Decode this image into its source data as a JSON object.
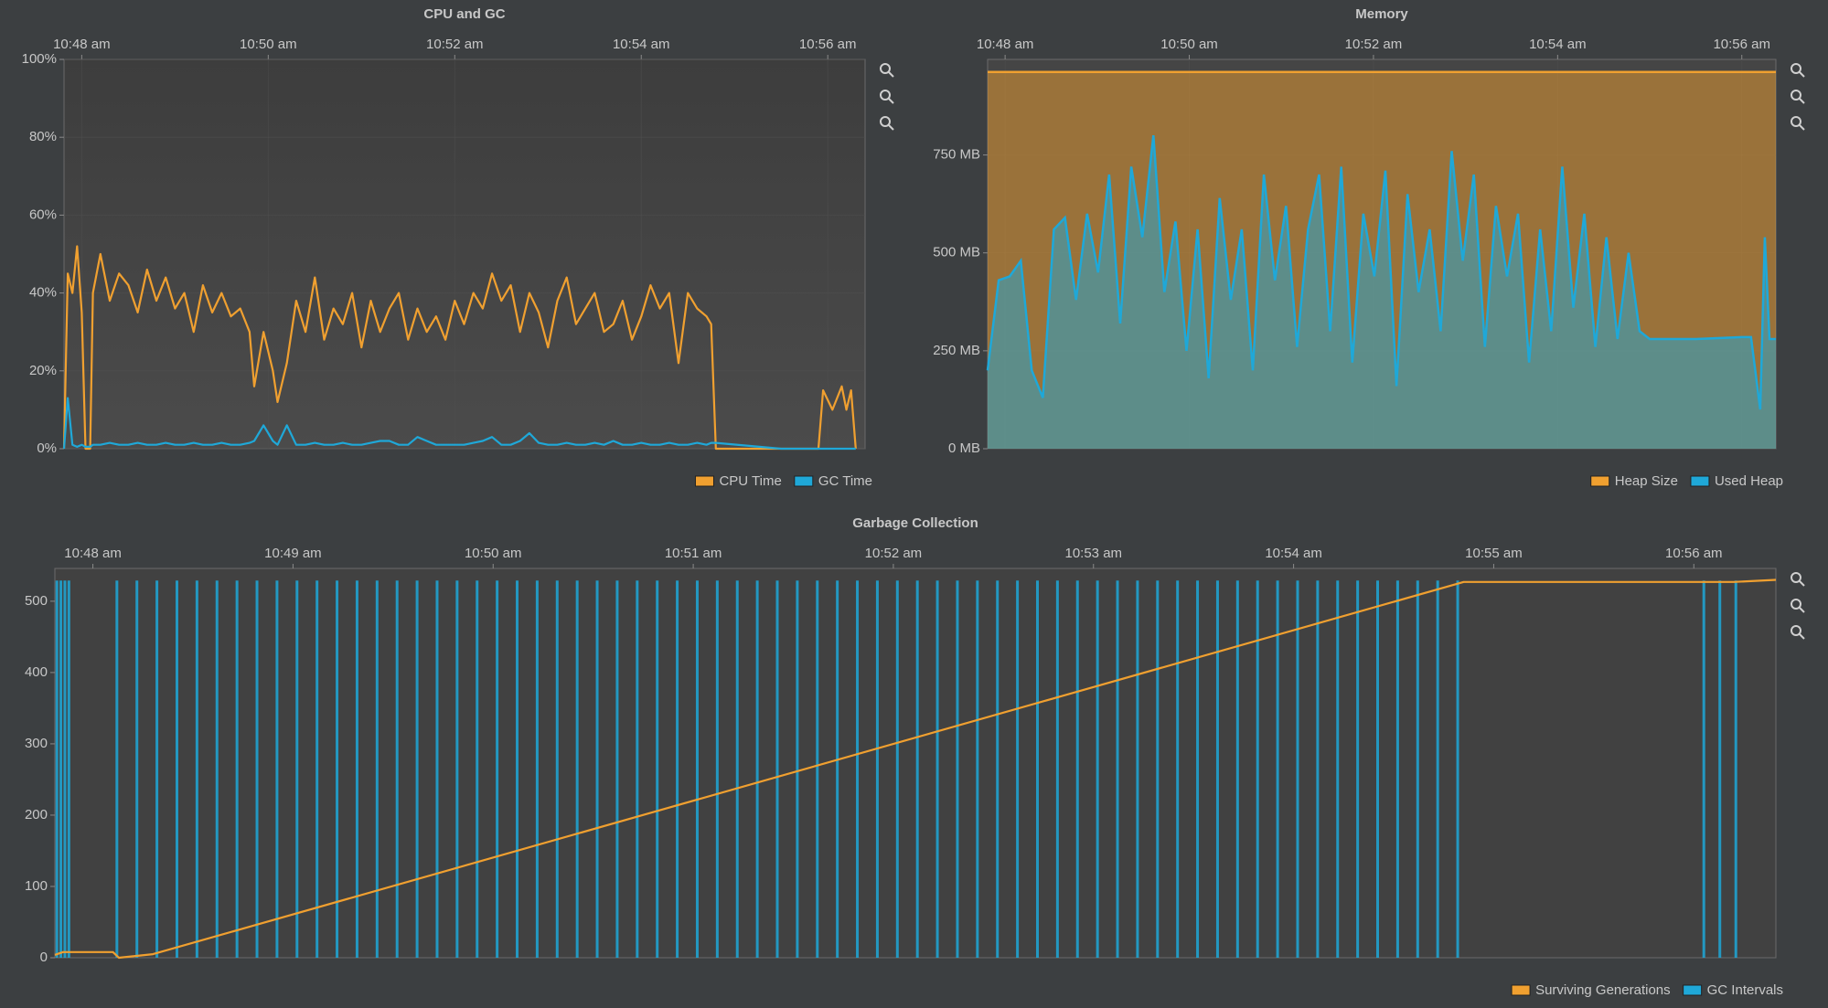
{
  "chart_data": [
    {
      "type": "line",
      "title": "CPU and GC",
      "x": [
        47.81,
        47.85,
        47.9,
        47.95,
        48.0,
        48.04,
        48.09,
        48.12,
        48.2,
        48.3,
        48.4,
        48.5,
        48.6,
        48.7,
        48.8,
        48.9,
        49.0,
        49.1,
        49.2,
        49.3,
        49.4,
        49.5,
        49.6,
        49.7,
        49.8,
        49.85,
        49.95,
        50.05,
        50.1,
        50.2,
        50.3,
        50.4,
        50.5,
        50.6,
        50.7,
        50.8,
        50.9,
        51.0,
        51.1,
        51.2,
        51.3,
        51.4,
        51.5,
        51.6,
        51.7,
        51.8,
        51.9,
        52.0,
        52.1,
        52.2,
        52.3,
        52.4,
        52.5,
        52.6,
        52.7,
        52.8,
        52.9,
        53.0,
        53.1,
        53.2,
        53.3,
        53.4,
        53.5,
        53.6,
        53.7,
        53.8,
        53.9,
        54.0,
        54.1,
        54.2,
        54.3,
        54.4,
        54.5,
        54.6,
        54.7,
        54.75,
        54.8,
        55.5,
        55.9,
        55.95,
        56.05,
        56.15,
        56.2,
        56.25,
        56.3
      ],
      "series": [
        {
          "name": "CPU Time",
          "color": "#f0a030",
          "values": [
            0,
            45,
            40,
            52,
            35,
            0,
            0,
            40,
            50,
            38,
            45,
            42,
            35,
            46,
            38,
            44,
            36,
            40,
            30,
            42,
            35,
            40,
            34,
            36,
            30,
            16,
            30,
            20,
            12,
            22,
            38,
            30,
            44,
            28,
            36,
            32,
            40,
            26,
            38,
            30,
            36,
            40,
            28,
            36,
            30,
            34,
            28,
            38,
            32,
            40,
            36,
            45,
            38,
            42,
            30,
            40,
            35,
            26,
            38,
            44,
            32,
            36,
            40,
            30,
            32,
            38,
            28,
            34,
            42,
            36,
            40,
            22,
            40,
            36,
            34,
            32,
            0,
            0,
            0,
            15,
            10,
            16,
            10,
            15,
            0
          ]
        },
        {
          "name": "GC Time",
          "color": "#1fa8d8",
          "values": [
            0,
            13,
            1,
            0.5,
            1,
            0.5,
            0.5,
            1,
            1,
            1.5,
            1,
            1,
            1.5,
            1,
            1,
            1.5,
            1,
            1,
            1.5,
            1,
            1,
            1.5,
            1,
            1,
            1.5,
            2,
            6,
            2,
            1,
            6,
            1,
            1,
            1.5,
            1,
            1,
            1.5,
            1,
            1,
            1.5,
            2,
            2,
            1,
            1,
            3,
            2,
            1,
            1,
            1,
            1,
            1.5,
            2,
            3,
            1,
            1,
            2,
            4,
            1.5,
            1,
            1,
            1.5,
            1,
            1,
            1.5,
            1,
            2,
            1,
            1,
            1.5,
            1,
            1,
            1.5,
            1,
            1,
            1.5,
            1,
            1.5,
            1.5,
            0,
            0,
            0,
            0,
            0,
            0,
            0,
            0
          ]
        }
      ],
      "xlim": [
        47.81,
        56.4
      ],
      "xticks": [
        {
          "value": 48,
          "label": "10:48 am"
        },
        {
          "value": 50,
          "label": "10:50 am"
        },
        {
          "value": 52,
          "label": "10:52 am"
        },
        {
          "value": 54,
          "label": "10:54 am"
        },
        {
          "value": 56,
          "label": "10:56 am"
        }
      ],
      "ylim": [
        0,
        100
      ],
      "yticks": [
        {
          "value": 0,
          "label": "0%"
        },
        {
          "value": 20,
          "label": "20%"
        },
        {
          "value": 40,
          "label": "40%"
        },
        {
          "value": 60,
          "label": "60%"
        },
        {
          "value": 80,
          "label": "80%"
        },
        {
          "value": 100,
          "label": "100%"
        }
      ],
      "grid": true,
      "legend": "lower right"
    },
    {
      "type": "area",
      "title": "Memory",
      "x": [
        47.81,
        47.93,
        48.05,
        48.17,
        48.29,
        48.41,
        48.53,
        48.65,
        48.77,
        48.89,
        49.01,
        49.13,
        49.25,
        49.37,
        49.49,
        49.61,
        49.73,
        49.85,
        49.97,
        50.09,
        50.21,
        50.33,
        50.45,
        50.57,
        50.69,
        50.81,
        50.93,
        51.05,
        51.17,
        51.29,
        51.41,
        51.53,
        51.65,
        51.77,
        51.89,
        52.01,
        52.13,
        52.25,
        52.37,
        52.49,
        52.61,
        52.73,
        52.85,
        52.97,
        53.09,
        53.21,
        53.33,
        53.45,
        53.57,
        53.69,
        53.81,
        53.93,
        54.05,
        54.17,
        54.29,
        54.41,
        54.53,
        54.65,
        54.77,
        54.89,
        55.0,
        55.5,
        56.0,
        56.1,
        56.2,
        56.25,
        56.3,
        56.37
      ],
      "series": [
        {
          "name": "Heap Size",
          "color": "#f0a030",
          "x": [
            47.81,
            56.37
          ],
          "values": [
            962,
            962
          ]
        },
        {
          "name": "Used Heap",
          "color": "#1fa8d8",
          "values": [
            200,
            430,
            440,
            480,
            200,
            130,
            560,
            590,
            380,
            600,
            450,
            700,
            320,
            720,
            540,
            800,
            400,
            580,
            250,
            560,
            180,
            640,
            380,
            560,
            200,
            700,
            430,
            620,
            260,
            560,
            700,
            300,
            720,
            220,
            600,
            440,
            710,
            160,
            650,
            400,
            560,
            300,
            760,
            480,
            700,
            260,
            620,
            440,
            600,
            220,
            560,
            300,
            720,
            360,
            600,
            260,
            540,
            280,
            500,
            300,
            280,
            280,
            285,
            285,
            100,
            540,
            280,
            280
          ]
        }
      ],
      "xlim": [
        47.81,
        56.37
      ],
      "xticks": [
        {
          "value": 48,
          "label": "10:48 am"
        },
        {
          "value": 50,
          "label": "10:50 am"
        },
        {
          "value": 52,
          "label": "10:52 am"
        },
        {
          "value": 54,
          "label": "10:54 am"
        },
        {
          "value": 56,
          "label": "10:56 am"
        }
      ],
      "ylim": [
        0,
        994
      ],
      "yticks": [
        {
          "value": 0,
          "label": "0 MB"
        },
        {
          "value": 250,
          "label": "250 MB"
        },
        {
          "value": 500,
          "label": "500 MB"
        },
        {
          "value": 750,
          "label": "750 MB"
        }
      ],
      "grid": true,
      "legend": "lower right"
    },
    {
      "type": "combo",
      "title": "Garbage Collection",
      "series": [
        {
          "name": "Surviving Generations",
          "color": "#f0a030",
          "type": "line",
          "x": [
            47.81,
            47.85,
            48.1,
            48.13,
            48.3,
            54.85,
            56.2,
            56.41
          ],
          "values": [
            4,
            8,
            8,
            0,
            5,
            527,
            527,
            530
          ]
        },
        {
          "name": "GC Intervals",
          "color": "#1fa8d8",
          "type": "bar",
          "x": [
            47.82,
            47.84,
            47.86,
            47.88,
            48.12,
            48.22,
            48.32,
            48.42,
            48.52,
            48.62,
            48.72,
            48.82,
            48.92,
            49.02,
            49.12,
            49.22,
            49.32,
            49.42,
            49.52,
            49.62,
            49.72,
            49.82,
            49.92,
            50.02,
            50.12,
            50.22,
            50.32,
            50.42,
            50.52,
            50.62,
            50.72,
            50.82,
            50.92,
            51.02,
            51.12,
            51.22,
            51.32,
            51.42,
            51.52,
            51.62,
            51.72,
            51.82,
            51.92,
            52.02,
            52.12,
            52.22,
            52.32,
            52.42,
            52.52,
            52.62,
            52.72,
            52.82,
            52.92,
            53.02,
            53.12,
            53.22,
            53.32,
            53.42,
            53.52,
            53.62,
            53.72,
            53.82,
            53.92,
            54.02,
            54.12,
            54.22,
            54.32,
            54.42,
            54.52,
            54.62,
            54.72,
            54.82,
            56.05,
            56.13,
            56.21
          ],
          "values": [
            529,
            529,
            529,
            529,
            529,
            529,
            529,
            529,
            529,
            529,
            529,
            529,
            529,
            529,
            529,
            529,
            529,
            529,
            529,
            529,
            529,
            529,
            529,
            529,
            529,
            529,
            529,
            529,
            529,
            529,
            529,
            529,
            529,
            529,
            529,
            529,
            529,
            529,
            529,
            529,
            529,
            529,
            529,
            529,
            529,
            529,
            529,
            529,
            529,
            529,
            529,
            529,
            529,
            529,
            529,
            529,
            529,
            529,
            529,
            529,
            529,
            529,
            529,
            529,
            529,
            529,
            529,
            529,
            529,
            529,
            529,
            529,
            529,
            529,
            529
          ]
        }
      ],
      "xlim": [
        47.81,
        56.41
      ],
      "xticks": [
        {
          "value": 48,
          "label": "10:48 am"
        },
        {
          "value": 49,
          "label": "10:49 am"
        },
        {
          "value": 50,
          "label": "10:50 am"
        },
        {
          "value": 51,
          "label": "10:51 am"
        },
        {
          "value": 52,
          "label": "10:52 am"
        },
        {
          "value": 53,
          "label": "10:53 am"
        },
        {
          "value": 54,
          "label": "10:54 am"
        },
        {
          "value": 55,
          "label": "10:55 am"
        },
        {
          "value": 56,
          "label": "10:56 am"
        }
      ],
      "ylim": [
        0,
        546
      ],
      "yticks": [
        0,
        100,
        200,
        300,
        400,
        500
      ],
      "grid": false,
      "legend": "lower right"
    }
  ]
}
